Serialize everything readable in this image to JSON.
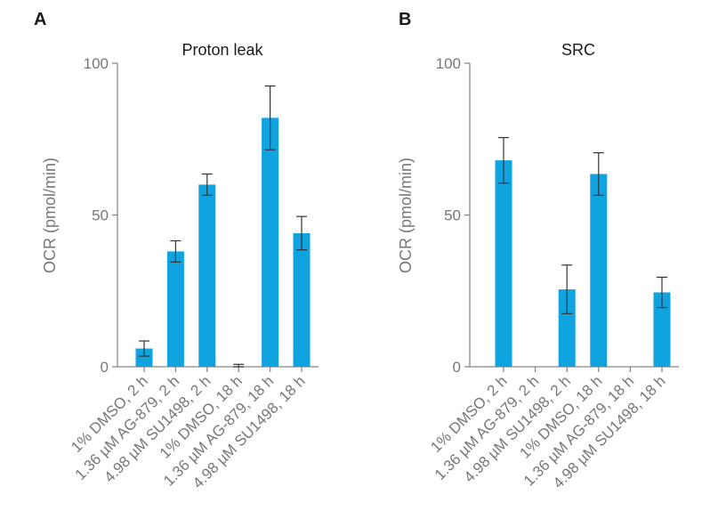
{
  "colors": {
    "bar": "#0fa3e0",
    "axis": "#888888",
    "text": "#777777",
    "error": "#333333"
  },
  "chart_data": [
    {
      "type": "bar",
      "panel": "A",
      "title": "Proton leak",
      "xlabel": "",
      "ylabel": "OCR (pmol/min)",
      "ylim": [
        0,
        100
      ],
      "yticks": [
        "0",
        "50",
        "100"
      ],
      "categories": [
        "1% DMSO, 2 h",
        "1.36 µM AG-879, 2 h",
        "4.98 µM SU1498, 2 h",
        "1% DMSO, 18 h",
        "1.36 µM AG-879, 18 h",
        "4.98 µM SU1498, 18 h"
      ],
      "values": [
        6,
        38,
        60,
        0,
        82,
        44
      ],
      "errors": [
        2.5,
        3.5,
        3.5,
        0.8,
        10.5,
        5.5
      ]
    },
    {
      "type": "bar",
      "panel": "B",
      "title": "SRC",
      "xlabel": "",
      "ylabel": "OCR (pmol/min)",
      "ylim": [
        0,
        100
      ],
      "yticks": [
        "0",
        "50",
        "100"
      ],
      "categories": [
        "1% DMSO, 2 h",
        "1.36 µM AG-879, 2 h",
        "4.98 µM SU1498, 2 h",
        "1% DMSO, 18 h",
        "1.36 µM AG-879, 18 h",
        "4.98 µM SU1498, 18 h"
      ],
      "values": [
        68,
        0,
        25.5,
        63.5,
        0,
        24.5
      ],
      "errors": [
        7.5,
        null,
        8,
        7,
        null,
        5
      ]
    }
  ]
}
